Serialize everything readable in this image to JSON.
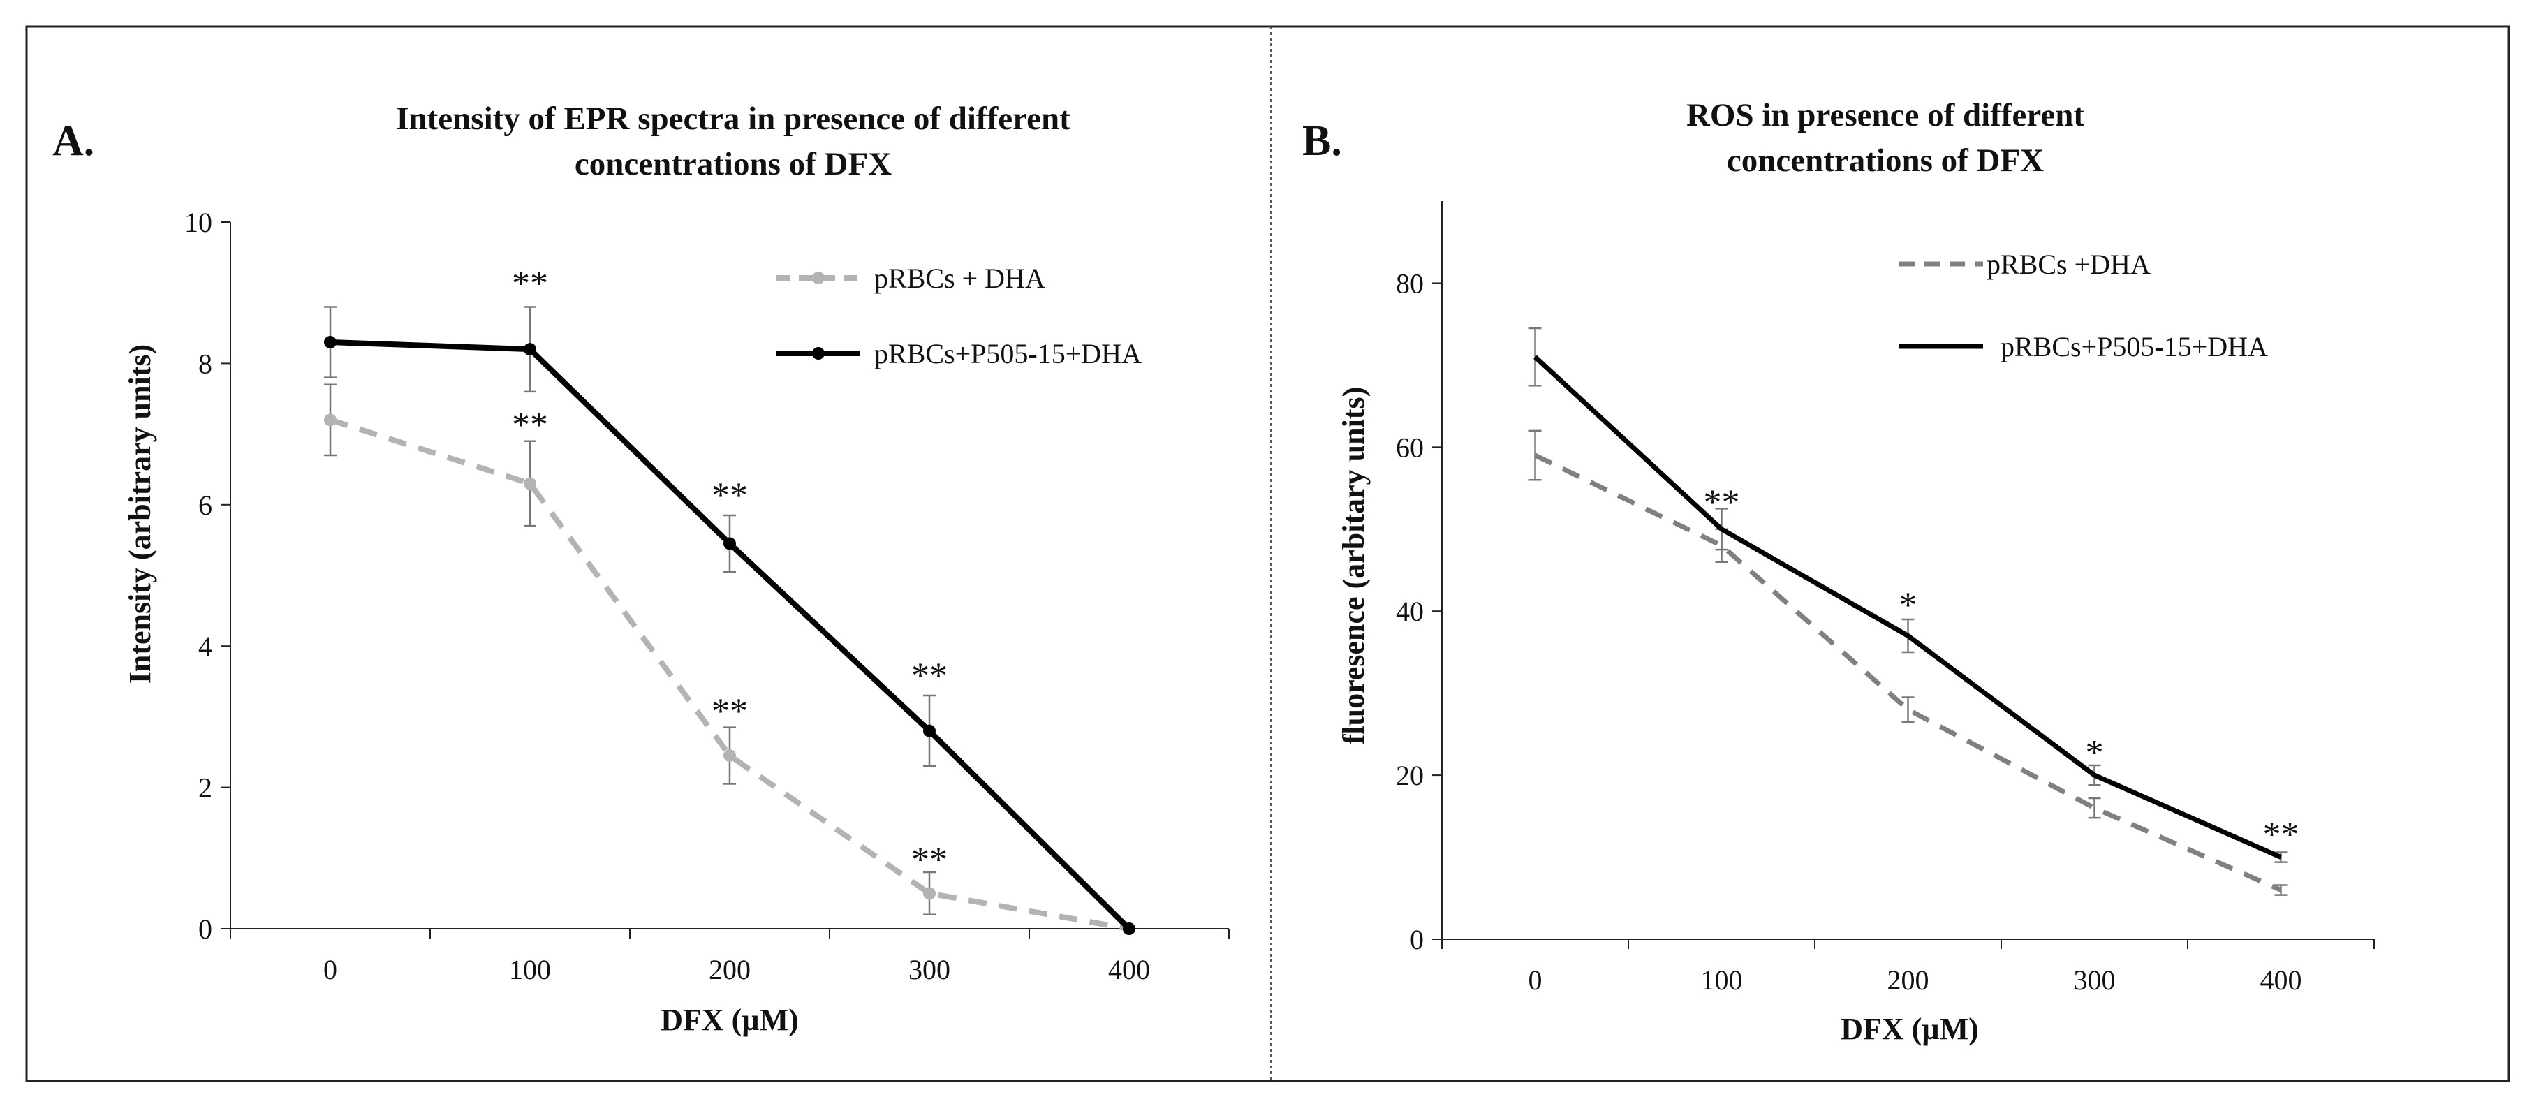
{
  "panels": [
    {
      "letter": "A.",
      "title_lines": [
        "Intensity of EPR spectra in presence of different",
        "concentrations of DFX"
      ],
      "chart_data": {
        "type": "line",
        "title": "Intensity of EPR spectra in presence of different concentrations of DFX",
        "xlabel": "DFX (µM)",
        "ylabel": "Intensity (arbitrary units)",
        "x": [
          0,
          100,
          200,
          300,
          400
        ],
        "x_ticks": [
          "0",
          "100",
          "200",
          "300",
          "400"
        ],
        "xlim": [
          -50,
          450
        ],
        "ylim": [
          0,
          10
        ],
        "y_ticks": [
          "0",
          "2",
          "4",
          "6",
          "8",
          "10"
        ],
        "grid": false,
        "legend_position": "top-right",
        "series": [
          {
            "name": "pRBCs + DHA",
            "color": "#b3b3b3",
            "style": "dashed",
            "marker": "circle",
            "values": [
              7.2,
              6.3,
              2.45,
              0.5,
              0.0
            ],
            "errors": [
              0.5,
              0.6,
              0.4,
              0.3,
              0.0
            ]
          },
          {
            "name": "pRBCs+P505-15+DHA",
            "color": "#000000",
            "style": "solid",
            "marker": "circle",
            "values": [
              8.3,
              8.2,
              5.45,
              2.8,
              0.0
            ],
            "errors": [
              0.5,
              0.6,
              0.4,
              0.5,
              0.0
            ]
          }
        ],
        "annotations": [
          {
            "text": "**",
            "x": 100,
            "y": 9.1
          },
          {
            "text": "**",
            "x": 100,
            "y": 7.1
          },
          {
            "text": "**",
            "x": 200,
            "y": 6.1
          },
          {
            "text": "**",
            "x": 200,
            "y": 3.05
          },
          {
            "text": "**",
            "x": 300,
            "y": 3.55
          },
          {
            "text": "**",
            "x": 300,
            "y": 0.95
          }
        ]
      }
    },
    {
      "letter": "B.",
      "title_lines": [
        "ROS in presence of different",
        "concentrations of DFX"
      ],
      "chart_data": {
        "type": "line",
        "title": "ROS in presence of different concentrations of DFX",
        "xlabel": "DFX (µM)",
        "ylabel": "fluoresence (arbitary units)",
        "x": [
          0,
          100,
          200,
          300,
          400
        ],
        "x_ticks": [
          "0",
          "100",
          "200",
          "300",
          "400"
        ],
        "xlim": [
          -50,
          450
        ],
        "ylim": [
          0,
          90
        ],
        "y_ticks": [
          "0",
          "20",
          "40",
          "60",
          "80"
        ],
        "grid": false,
        "legend_position": "top-right",
        "series": [
          {
            "name": "pRBCs  +DHA",
            "color": "#808080",
            "style": "dashed",
            "marker": "none",
            "values": [
              59,
              48,
              28,
              16,
              6
            ],
            "errors": [
              3,
              2,
              1.5,
              1.2,
              0.6
            ]
          },
          {
            "name": "pRBCs+P505-15+DHA",
            "color": "#000000",
            "style": "solid",
            "marker": "none",
            "values": [
              71,
              50,
              37,
              20,
              10
            ],
            "errors": [
              3.5,
              2.5,
              2,
              1.2,
              0.6
            ]
          }
        ],
        "annotations": [
          {
            "text": "**",
            "x": 100,
            "y": 53
          },
          {
            "text": "*",
            "x": 200,
            "y": 40.5
          },
          {
            "text": "*",
            "x": 300,
            "y": 22.5
          },
          {
            "text": "**",
            "x": 400,
            "y": 12.5
          }
        ]
      }
    }
  ]
}
